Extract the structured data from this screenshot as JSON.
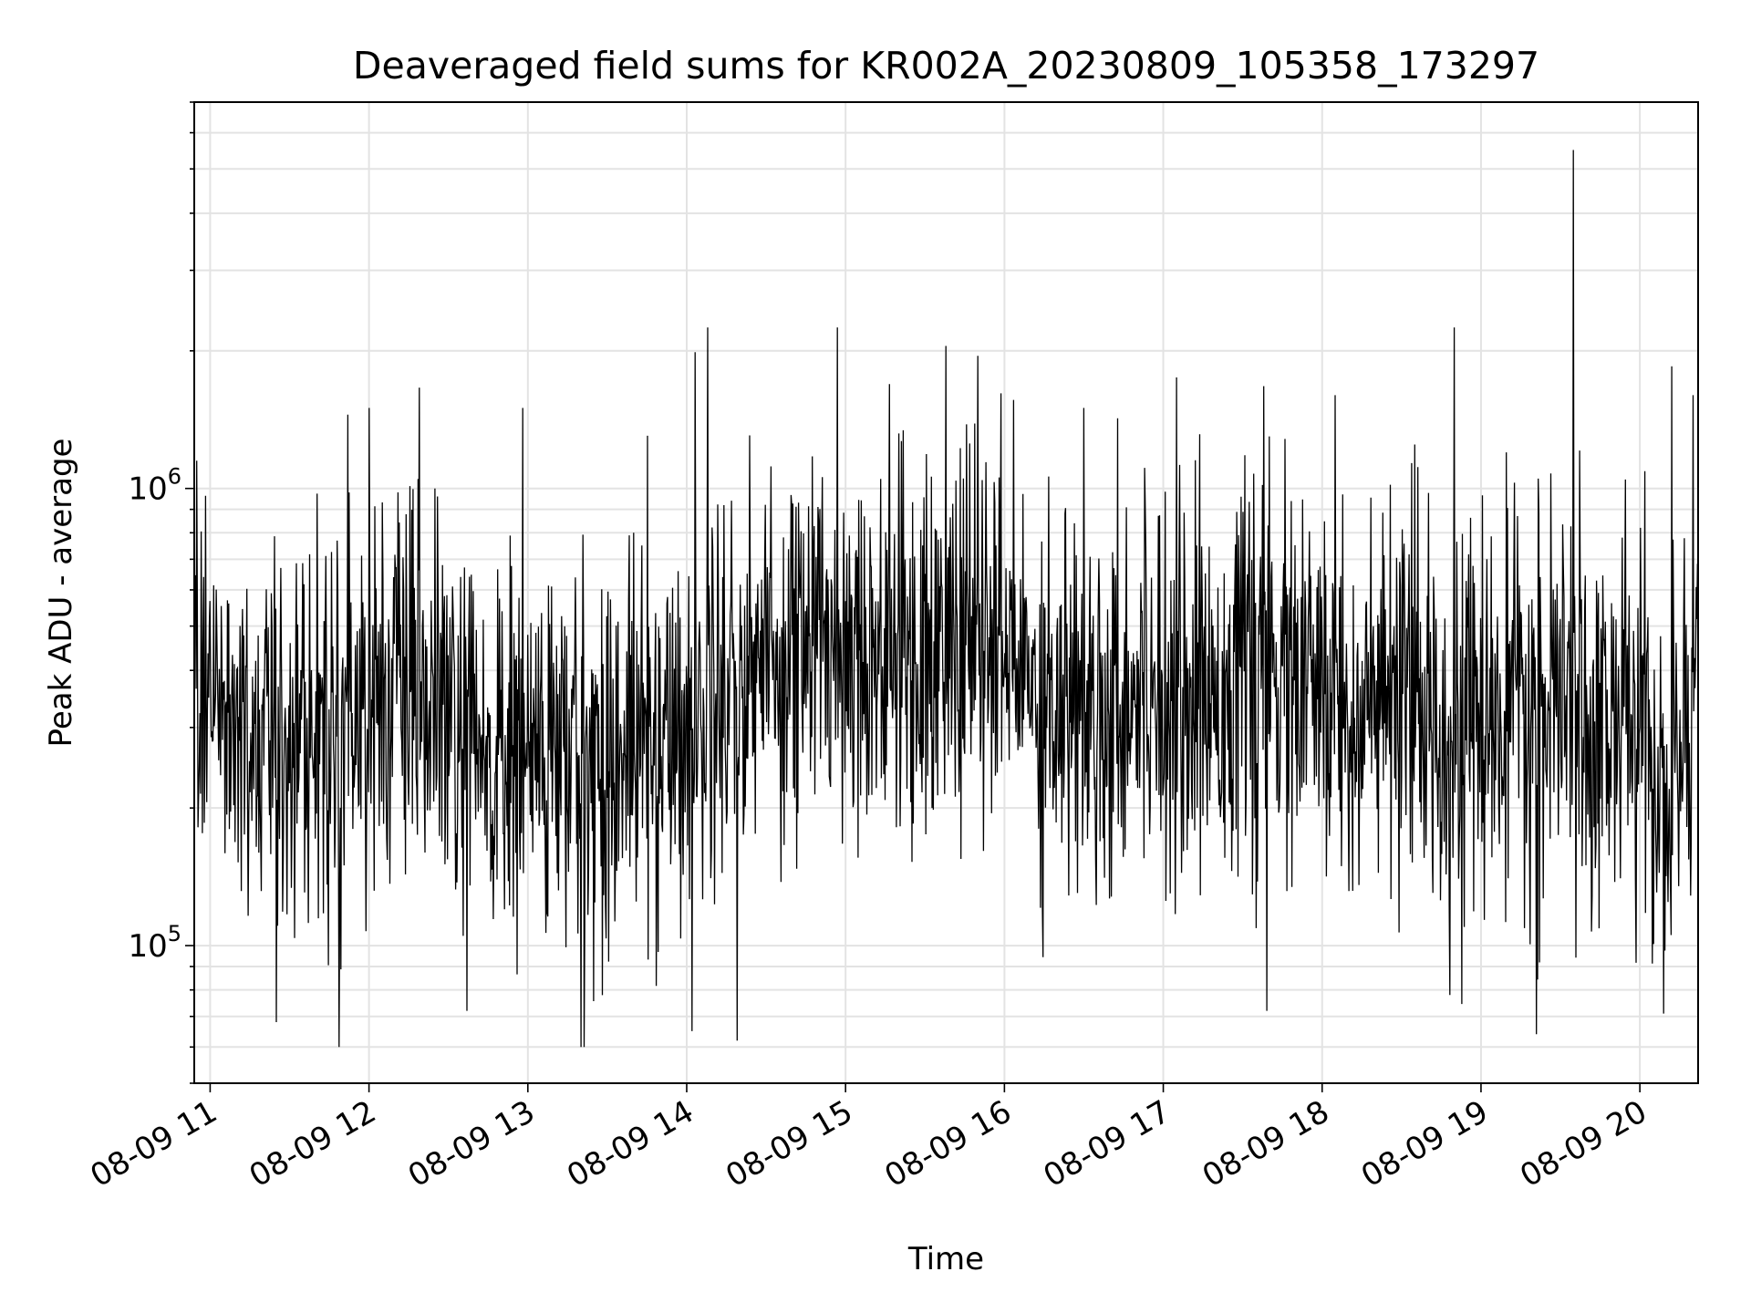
{
  "chart_data": {
    "type": "line",
    "title": "Deaveraged field sums for KR002A_20230809_105358_173297",
    "xlabel": "Time",
    "ylabel": "Peak ADU - average",
    "xlim": [
      "08-09 10:54",
      "08-09 20:22"
    ],
    "ylim": [
      50000,
      7000000
    ],
    "y_scale": "log",
    "grid": true,
    "x_ticks": [
      "08-09 11",
      "08-09 12",
      "08-09 13",
      "08-09 14",
      "08-09 15",
      "08-09 16",
      "08-09 17",
      "08-09 18",
      "08-09 19",
      "08-09 20"
    ],
    "y_ticks": [
      {
        "base": "10",
        "exp": "5"
      },
      {
        "base": "10",
        "exp": "6"
      }
    ],
    "series": [
      {
        "color": "#000000",
        "x": [
          "08-09 10:54",
          "08-09 11:00",
          "08-09 11:15",
          "08-09 11:30",
          "08-09 11:45",
          "08-09 12:00",
          "08-09 12:15",
          "08-09 12:30",
          "08-09 12:45",
          "08-09 13:00",
          "08-09 13:15",
          "08-09 13:30",
          "08-09 13:45",
          "08-09 14:00",
          "08-09 14:15",
          "08-09 14:30",
          "08-09 14:45",
          "08-09 15:00",
          "08-09 15:15",
          "08-09 15:30",
          "08-09 15:45",
          "08-09 16:00",
          "08-09 16:15",
          "08-09 16:30",
          "08-09 16:45",
          "08-09 17:00",
          "08-09 17:15",
          "08-09 17:30",
          "08-09 17:45",
          "08-09 18:00",
          "08-09 18:15",
          "08-09 18:30",
          "08-09 18:45",
          "08-09 19:00",
          "08-09 19:15",
          "08-09 19:30",
          "08-09 19:45",
          "08-09 20:00",
          "08-09 20:10",
          "08-09 20:22"
        ],
        "y": [
          300000,
          320000,
          280000,
          300000,
          290000,
          360000,
          350000,
          300000,
          240000,
          260000,
          260000,
          250000,
          280000,
          300000,
          400000,
          420000,
          460000,
          480000,
          440000,
          430000,
          460000,
          440000,
          360000,
          330000,
          360000,
          380000,
          350000,
          400000,
          380000,
          340000,
          320000,
          330000,
          310000,
          300000,
          310000,
          320000,
          310000,
          320000,
          180000,
          450000
        ]
      }
    ],
    "peaks": [
      {
        "x": "08-09 10:55",
        "y": 1150000
      },
      {
        "x": "08-09 11:25",
        "y": 1100000
      },
      {
        "x": "08-09 11:52",
        "y": 1450000
      },
      {
        "x": "08-09 12:00",
        "y": 1500000
      },
      {
        "x": "08-09 12:25",
        "y": 1000000
      },
      {
        "x": "08-09 12:58",
        "y": 1500000
      },
      {
        "x": "08-09 13:40",
        "y": 800000
      },
      {
        "x": "08-09 14:08",
        "y": 2250000
      },
      {
        "x": "08-09 14:57",
        "y": 2250000
      },
      {
        "x": "08-09 15:38",
        "y": 2050000
      },
      {
        "x": "08-09 15:50",
        "y": 1950000
      },
      {
        "x": "08-09 16:30",
        "y": 1500000
      },
      {
        "x": "08-09 17:05",
        "y": 1750000
      },
      {
        "x": "08-09 17:40",
        "y": 1300000
      },
      {
        "x": "08-09 18:05",
        "y": 1600000
      },
      {
        "x": "08-09 18:50",
        "y": 2250000
      },
      {
        "x": "08-09 19:35",
        "y": 5500000
      },
      {
        "x": "08-09 20:12",
        "y": 1850000
      },
      {
        "x": "08-09 20:20",
        "y": 1600000
      }
    ],
    "troughs": [
      {
        "x": "08-09 11:25",
        "y": 68000
      },
      {
        "x": "08-09 12:37",
        "y": 72000
      },
      {
        "x": "08-09 13:20",
        "y": 60000
      },
      {
        "x": "08-09 14:02",
        "y": 65000
      },
      {
        "x": "08-09 14:19",
        "y": 62000
      },
      {
        "x": "08-09 17:39",
        "y": 72000
      },
      {
        "x": "08-09 19:21",
        "y": 64000
      },
      {
        "x": "08-09 20:09",
        "y": 71000
      }
    ]
  }
}
